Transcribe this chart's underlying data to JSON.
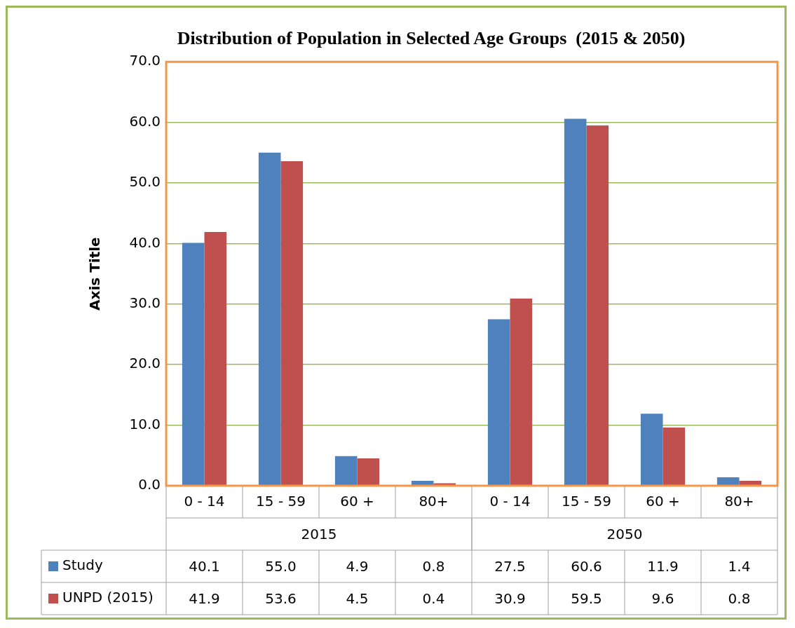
{
  "chart_data": {
    "type": "bar",
    "title": "Distribution of Population in Selected Age Groups  (2015 & 2050)",
    "ylabel": "Axis Title",
    "categories": [
      "0 - 14",
      "15 - 59",
      "60 +",
      "80+",
      "0 - 14",
      "15 - 59",
      "60 +",
      "80+"
    ],
    "annotations": [
      "2015",
      "2050"
    ],
    "series": [
      {
        "name": "Study",
        "color": "#4f81bd",
        "values": [
          40.1,
          55.0,
          4.9,
          0.8,
          27.5,
          60.6,
          11.9,
          1.4
        ],
        "value_labels": [
          "40.1",
          "55.0",
          "4.9",
          "0.8",
          "27.5",
          "60.6",
          "11.9",
          "1.4"
        ]
      },
      {
        "name": "UNPD (2015)",
        "color": "#c0504d",
        "values": [
          41.9,
          53.6,
          4.5,
          0.4,
          30.9,
          59.5,
          9.6,
          0.8
        ],
        "value_labels": [
          "41.9",
          "53.6",
          "4.5",
          "0.4",
          "30.9",
          "59.5",
          "9.6",
          "0.8"
        ]
      }
    ],
    "ylim": [
      0,
      70
    ],
    "yticks": [
      {
        "value": 0,
        "label": "0.0"
      },
      {
        "value": 10,
        "label": "10.0"
      },
      {
        "value": 20,
        "label": "20.0"
      },
      {
        "value": 30,
        "label": "30.0"
      },
      {
        "value": 40,
        "label": "40.0"
      },
      {
        "value": 50,
        "label": "50.0"
      },
      {
        "value": 60,
        "label": "60.0"
      },
      {
        "value": 70,
        "label": "70.0"
      }
    ],
    "grid": "y",
    "legend": "bottom"
  }
}
